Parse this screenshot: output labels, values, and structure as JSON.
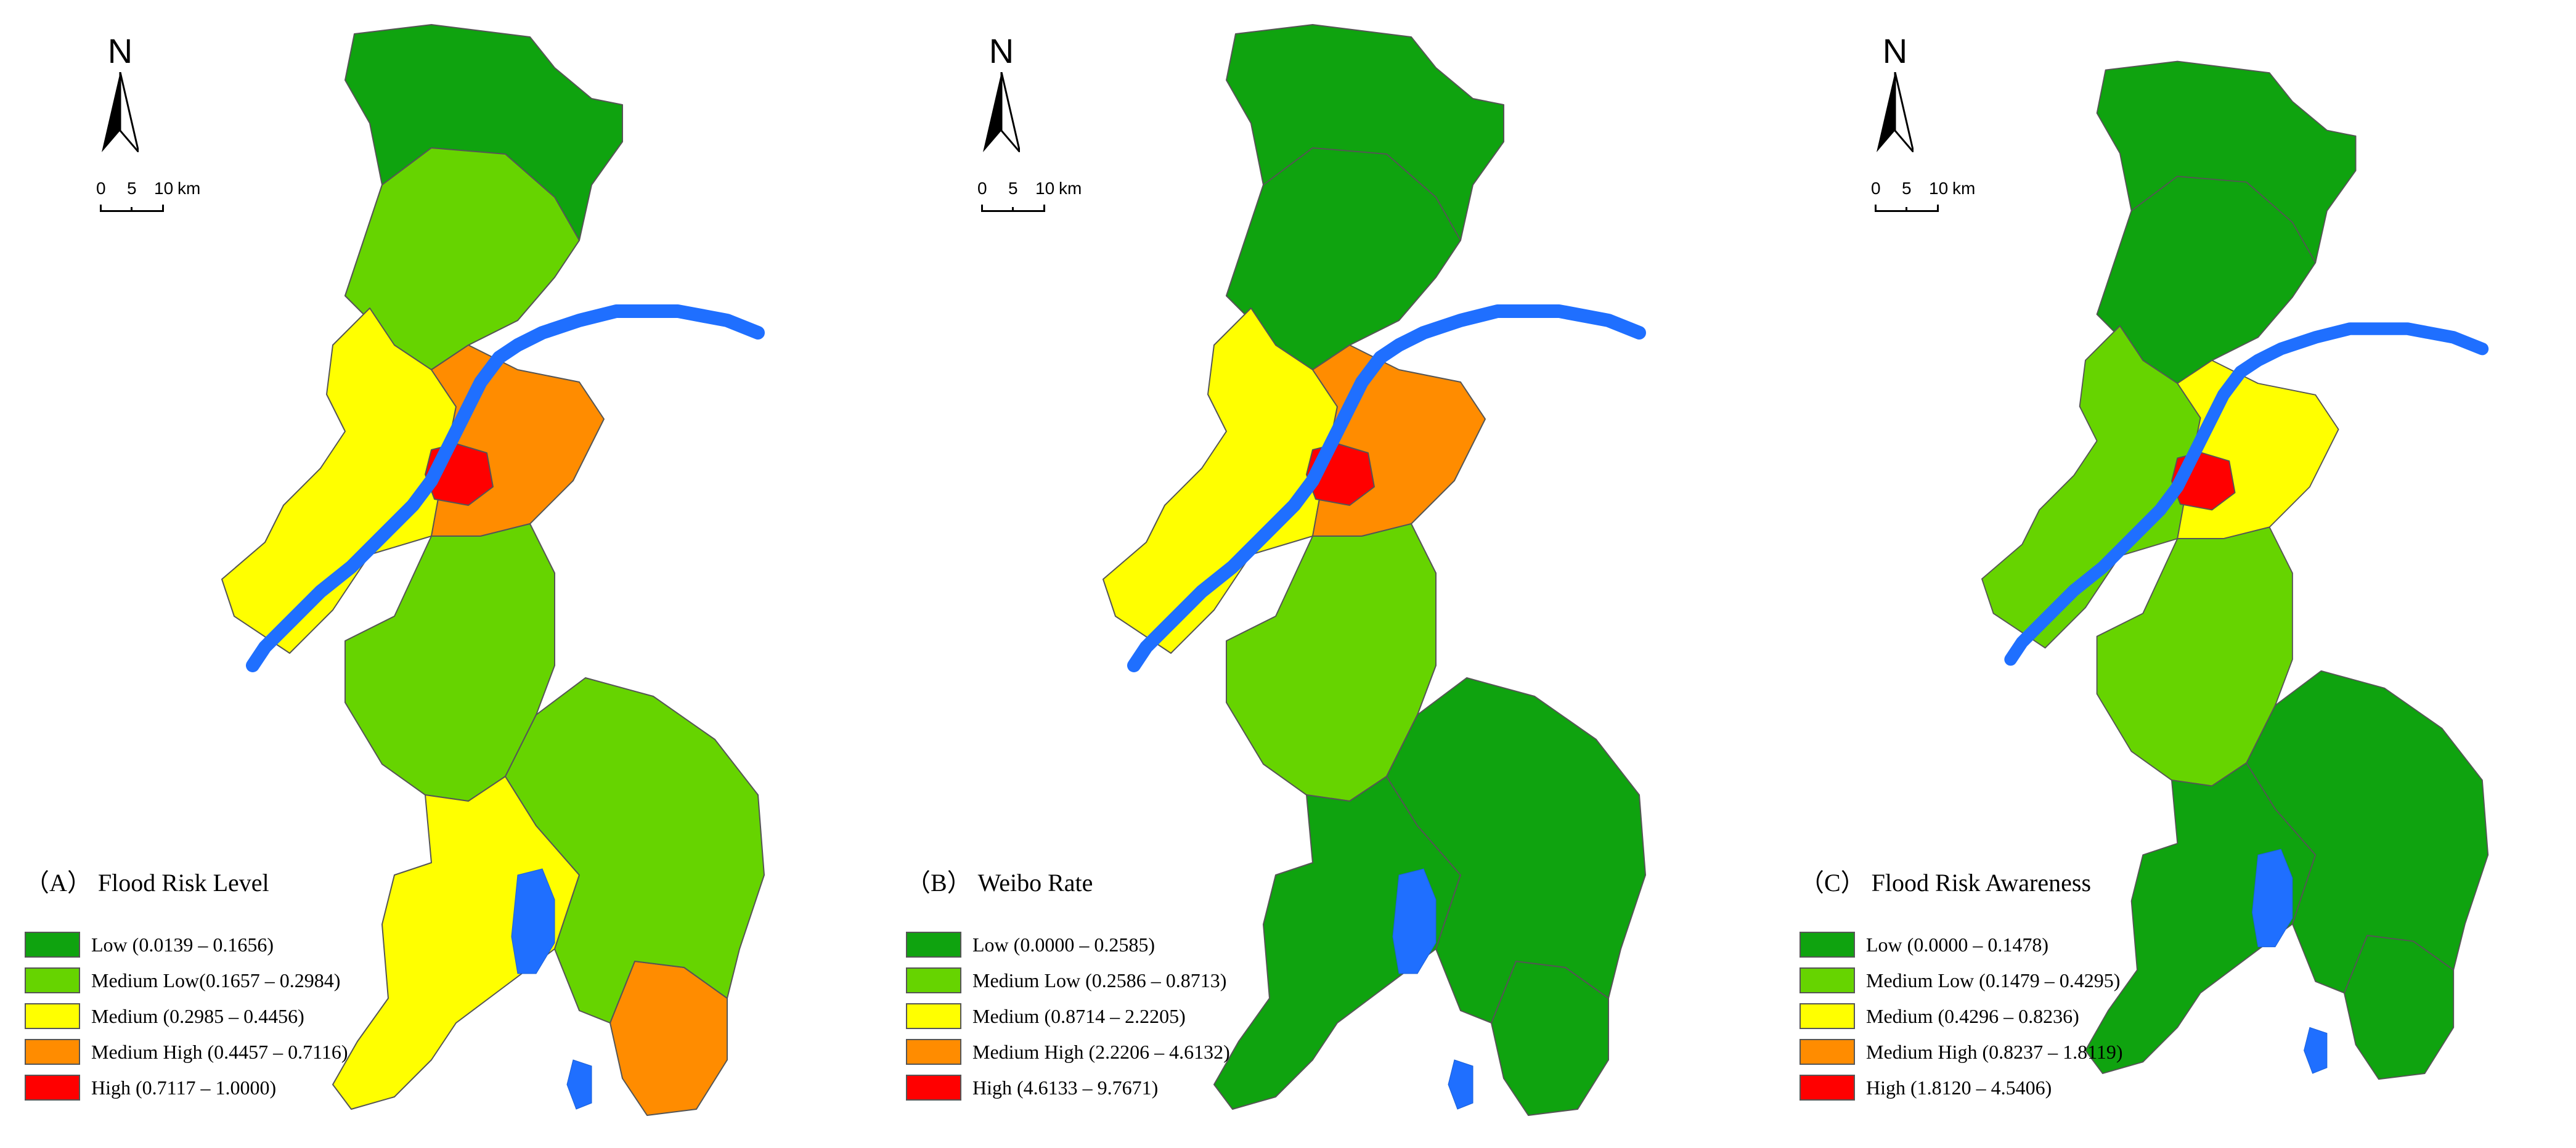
{
  "panels": [
    {
      "title": "（A） Flood Risk Level",
      "north_label": "N",
      "scale": {
        "t0": "0",
        "t1": "5",
        "t2": "10",
        "unit": "km"
      },
      "legend": [
        {
          "label": "Low (0.0139 – 0.1656)",
          "color": "#0fa30f"
        },
        {
          "label": "Medium Low(0.1657 – 0.2984)",
          "color": "#66d400"
        },
        {
          "label": "Medium (0.2985 – 0.4456)",
          "color": "#ffff00"
        },
        {
          "label": "Medium High (0.4457 – 0.7116)",
          "color": "#ff8c00"
        },
        {
          "label": "High (0.7117 – 1.0000)",
          "color": "#ff0000"
        }
      ],
      "region_classes": {
        "north": 0,
        "north_mid": 1,
        "west": 2,
        "central": 3,
        "core": 4,
        "south_mid": 1,
        "south": 2,
        "southeast": 3,
        "east": 1
      }
    },
    {
      "title": "（B） Weibo Rate",
      "north_label": "N",
      "scale": {
        "t0": "0",
        "t1": "5",
        "t2": "10",
        "unit": "km"
      },
      "legend": [
        {
          "label": "Low (0.0000 – 0.2585)",
          "color": "#0fa30f"
        },
        {
          "label": "Medium Low (0.2586 – 0.8713)",
          "color": "#66d400"
        },
        {
          "label": "Medium (0.8714 – 2.2205)",
          "color": "#ffff00"
        },
        {
          "label": "Medium High (2.2206 – 4.6132)",
          "color": "#ff8c00"
        },
        {
          "label": "High (4.6133 – 9.7671)",
          "color": "#ff0000"
        }
      ],
      "region_classes": {
        "north": 0,
        "north_mid": 0,
        "west": 2,
        "central": 3,
        "core": 4,
        "south_mid": 1,
        "south": 0,
        "southeast": 0,
        "east": 0
      }
    },
    {
      "title": "（C） Flood Risk Awareness",
      "north_label": "N",
      "scale": {
        "t0": "0",
        "t1": "5",
        "t2": "10",
        "unit": "km"
      },
      "legend": [
        {
          "label": "Low (0.0000 – 0.1478)",
          "color": "#0fa30f"
        },
        {
          "label": "Medium Low (0.1479 – 0.4295)",
          "color": "#66d400"
        },
        {
          "label": "Medium (0.4296 – 0.8236)",
          "color": "#ffff00"
        },
        {
          "label": "Medium High (0.8237 – 1.8119)",
          "color": "#ff8c00"
        },
        {
          "label": "High (1.8120 – 4.5406)",
          "color": "#ff0000"
        }
      ],
      "region_classes": {
        "north": 0,
        "north_mid": 0,
        "west": 1,
        "central": 2,
        "core": 4,
        "south_mid": 1,
        "south": 0,
        "southeast": 0,
        "east": 0
      }
    }
  ],
  "colors": {
    "river": "#1f6fff",
    "lake": "#1f6fff",
    "boundary": "#555555"
  }
}
